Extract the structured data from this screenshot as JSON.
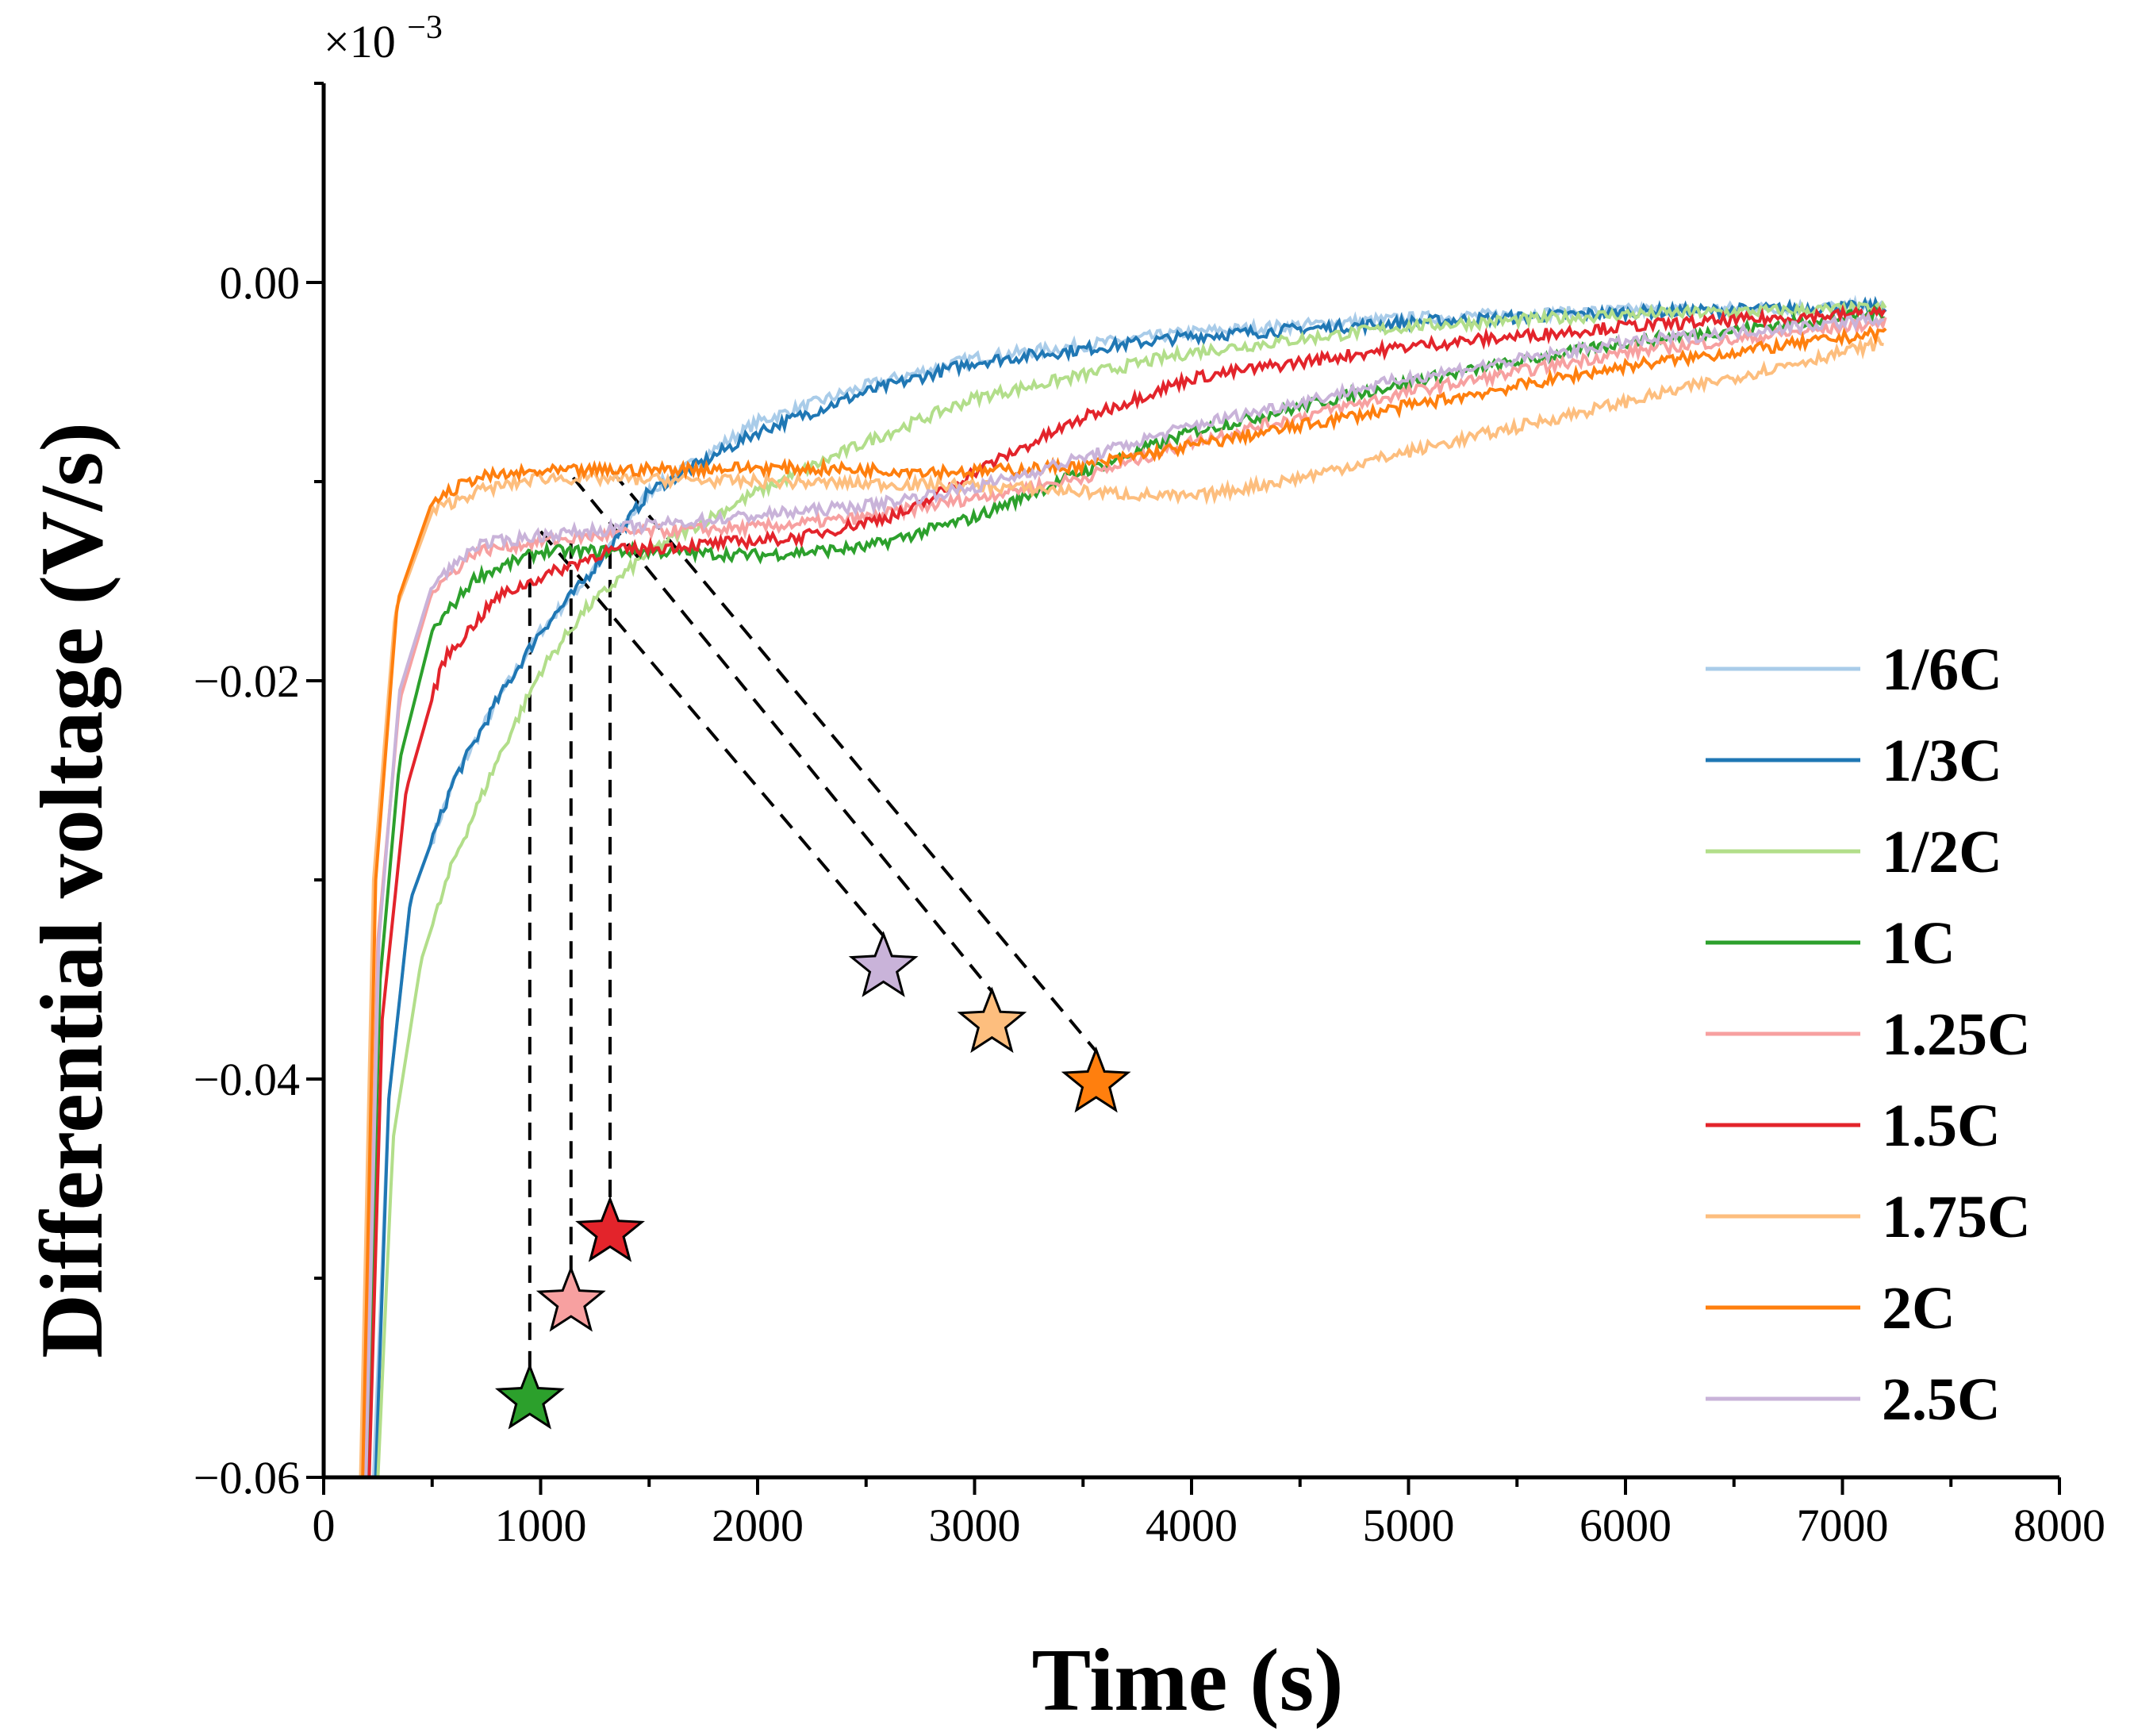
{
  "chart_data": {
    "type": "line",
    "title": "",
    "xlabel": "Time (s)",
    "ylabel": "Differential voltage (V/s)",
    "y_multiplier_label": "×10",
    "y_multiplier_exponent": "−3",
    "xlim": [
      0,
      8000
    ],
    "ylim": [
      -0.06,
      0.01
    ],
    "x_ticks": [
      0,
      1000,
      2000,
      3000,
      4000,
      5000,
      6000,
      7000,
      8000
    ],
    "x_tick_labels": [
      "0",
      "1000",
      "2000",
      "3000",
      "4000",
      "5000",
      "6000",
      "7000",
      "8000"
    ],
    "y_ticks": [
      -0.06,
      -0.04,
      -0.02,
      0.0
    ],
    "y_tick_labels": [
      "−0.06",
      "−0.04",
      "−0.02",
      "0.00"
    ],
    "legend_position": "right",
    "series": [
      {
        "name": "1/6C",
        "color": "#a9cce9",
        "points": [
          [
            230,
            -0.06
          ],
          [
            300,
            -0.041
          ],
          [
            400,
            -0.031
          ],
          [
            600,
            -0.025
          ],
          [
            800,
            -0.021
          ],
          [
            1000,
            -0.0175
          ],
          [
            1200,
            -0.015
          ],
          [
            1500,
            -0.0105
          ],
          [
            2000,
            -0.007
          ],
          [
            2500,
            -0.0052
          ],
          [
            3000,
            -0.0038
          ],
          [
            4000,
            -0.0025
          ],
          [
            5000,
            -0.0018
          ],
          [
            6000,
            -0.0014
          ],
          [
            7200,
            -0.0012
          ]
        ]
      },
      {
        "name": "1/3C",
        "color": "#1f77b4",
        "points": [
          [
            240,
            -0.06
          ],
          [
            300,
            -0.041
          ],
          [
            400,
            -0.031
          ],
          [
            600,
            -0.025
          ],
          [
            800,
            -0.021
          ],
          [
            1000,
            -0.0175
          ],
          [
            1200,
            -0.015
          ],
          [
            1500,
            -0.0105
          ],
          [
            2000,
            -0.0075
          ],
          [
            2500,
            -0.0055
          ],
          [
            3000,
            -0.004
          ],
          [
            4000,
            -0.0027
          ],
          [
            5000,
            -0.002
          ],
          [
            6000,
            -0.0015
          ],
          [
            7200,
            -0.0012
          ]
        ]
      },
      {
        "name": "1/2C",
        "color": "#b2de8a",
        "points": [
          [
            250,
            -0.06
          ],
          [
            320,
            -0.043
          ],
          [
            450,
            -0.034
          ],
          [
            600,
            -0.029
          ],
          [
            800,
            -0.024
          ],
          [
            1000,
            -0.0195
          ],
          [
            1200,
            -0.0165
          ],
          [
            1500,
            -0.0135
          ],
          [
            2000,
            -0.0105
          ],
          [
            2500,
            -0.008
          ],
          [
            3000,
            -0.0058
          ],
          [
            4000,
            -0.0035
          ],
          [
            5000,
            -0.0022
          ],
          [
            6000,
            -0.0016
          ],
          [
            7200,
            -0.0013
          ]
        ]
      },
      {
        "name": "1C",
        "color": "#2ca02c",
        "points": [
          [
            200,
            -0.06
          ],
          [
            260,
            -0.035
          ],
          [
            350,
            -0.024
          ],
          [
            500,
            -0.0175
          ],
          [
            700,
            -0.0148
          ],
          [
            1000,
            -0.0135
          ],
          [
            1500,
            -0.0135
          ],
          [
            2000,
            -0.0137
          ],
          [
            2500,
            -0.0133
          ],
          [
            3000,
            -0.0118
          ],
          [
            3500,
            -0.0095
          ],
          [
            4000,
            -0.0075
          ],
          [
            5000,
            -0.005
          ],
          [
            6000,
            -0.003
          ],
          [
            7200,
            -0.0015
          ]
        ]
      },
      {
        "name": "1.25C",
        "color": "#f7a0a0",
        "points": [
          [
            190,
            -0.06
          ],
          [
            250,
            -0.033
          ],
          [
            350,
            -0.021
          ],
          [
            500,
            -0.0155
          ],
          [
            700,
            -0.0135
          ],
          [
            1000,
            -0.013
          ],
          [
            1500,
            -0.0125
          ],
          [
            2000,
            -0.0123
          ],
          [
            2500,
            -0.0118
          ],
          [
            3000,
            -0.0108
          ],
          [
            3500,
            -0.0098
          ],
          [
            4000,
            -0.008
          ],
          [
            5000,
            -0.0055
          ],
          [
            6000,
            -0.0035
          ],
          [
            7200,
            -0.002
          ]
        ]
      },
      {
        "name": "1.5C",
        "color": "#e3242b",
        "points": [
          [
            210,
            -0.06
          ],
          [
            270,
            -0.037
          ],
          [
            380,
            -0.0255
          ],
          [
            550,
            -0.019
          ],
          [
            800,
            -0.0158
          ],
          [
            1000,
            -0.0148
          ],
          [
            1300,
            -0.0135
          ],
          [
            1700,
            -0.0132
          ],
          [
            2200,
            -0.0128
          ],
          [
            2700,
            -0.0115
          ],
          [
            3000,
            -0.0095
          ],
          [
            3500,
            -0.0068
          ],
          [
            4000,
            -0.0048
          ],
          [
            5000,
            -0.0032
          ],
          [
            6000,
            -0.0022
          ],
          [
            7200,
            -0.0015
          ]
        ]
      },
      {
        "name": "1.75C",
        "color": "#fdbe7e",
        "points": [
          [
            170,
            -0.06
          ],
          [
            230,
            -0.03
          ],
          [
            330,
            -0.0165
          ],
          [
            500,
            -0.0115
          ],
          [
            700,
            -0.0105
          ],
          [
            1000,
            -0.0098
          ],
          [
            2000,
            -0.01
          ],
          [
            3000,
            -0.0102
          ],
          [
            3500,
            -0.0105
          ],
          [
            4000,
            -0.0108
          ],
          [
            4500,
            -0.0098
          ],
          [
            5000,
            -0.0085
          ],
          [
            6000,
            -0.006
          ],
          [
            7200,
            -0.003
          ]
        ]
      },
      {
        "name": "2C",
        "color": "#ff7f0e",
        "points": [
          [
            180,
            -0.06
          ],
          [
            240,
            -0.03
          ],
          [
            340,
            -0.016
          ],
          [
            500,
            -0.011
          ],
          [
            700,
            -0.0098
          ],
          [
            1000,
            -0.0095
          ],
          [
            2000,
            -0.0093
          ],
          [
            3000,
            -0.0095
          ],
          [
            3500,
            -0.0092
          ],
          [
            4000,
            -0.0082
          ],
          [
            5000,
            -0.0062
          ],
          [
            6000,
            -0.0042
          ],
          [
            7200,
            -0.0025
          ]
        ]
      },
      {
        "name": "2.5C",
        "color": "#c9b3d9",
        "points": [
          [
            195,
            -0.06
          ],
          [
            255,
            -0.033
          ],
          [
            350,
            -0.0205
          ],
          [
            500,
            -0.0152
          ],
          [
            700,
            -0.0132
          ],
          [
            1000,
            -0.0127
          ],
          [
            1500,
            -0.0122
          ],
          [
            2000,
            -0.0117
          ],
          [
            2500,
            -0.0112
          ],
          [
            3000,
            -0.0103
          ],
          [
            3500,
            -0.0088
          ],
          [
            4000,
            -0.0072
          ],
          [
            5000,
            -0.0048
          ],
          [
            6000,
            -0.003
          ],
          [
            7200,
            -0.0018
          ]
        ]
      }
    ],
    "markers": [
      {
        "series": "1C",
        "x": 950,
        "y": -0.0561,
        "color": "#2ca02c",
        "guide": "vertical",
        "guide_start": [
          950,
          -0.0135
        ]
      },
      {
        "series": "1.25C",
        "x": 1140,
        "y": -0.0512,
        "color": "#f7a0a0",
        "guide": "vertical",
        "guide_start": [
          1140,
          -0.013
        ]
      },
      {
        "series": "1.5C",
        "x": 1320,
        "y": -0.0477,
        "color": "#e3242b",
        "guide": "vertical",
        "guide_start": [
          1320,
          -0.0135
        ]
      },
      {
        "series": "2.5C",
        "x": 2580,
        "y": -0.0344,
        "color": "#c9b3d9",
        "guide": "diagonal",
        "guide_start": [
          1000,
          -0.0125
        ]
      },
      {
        "series": "1.75C",
        "x": 3080,
        "y": -0.0372,
        "color": "#fdbe7e",
        "guide": "diagonal",
        "guide_start": [
          1150,
          -0.0098
        ]
      },
      {
        "series": "2C",
        "x": 3560,
        "y": -0.0402,
        "color": "#ff7f0e",
        "guide": "diagonal",
        "guide_start": [
          1330,
          -0.0095
        ]
      }
    ]
  }
}
